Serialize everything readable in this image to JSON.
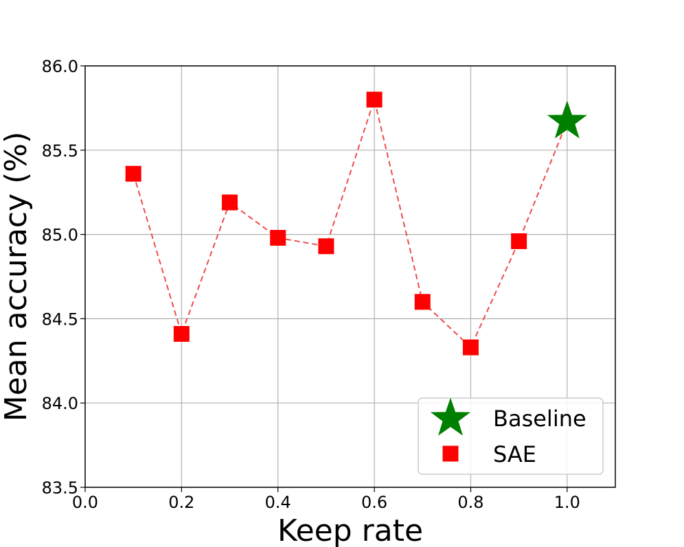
{
  "chart_data": {
    "type": "line",
    "title": "",
    "xlabel": "Keep rate",
    "ylabel": "Mean accuracy (%)",
    "xlim": [
      0.0,
      1.1
    ],
    "ylim": [
      83.5,
      86.0
    ],
    "xticks": [
      "0.0",
      "0.2",
      "0.4",
      "0.6",
      "0.8",
      "1.0"
    ],
    "xtick_values": [
      0.0,
      0.2,
      0.4,
      0.6,
      0.8,
      1.0
    ],
    "yticks": [
      "83.5",
      "84.0",
      "84.5",
      "85.0",
      "85.5",
      "86.0"
    ],
    "ytick_values": [
      83.5,
      84.0,
      84.5,
      85.0,
      85.5,
      86.0
    ],
    "grid": true,
    "legend_position": "bottom-right",
    "line_color": "#f04040",
    "line_style": "dashed",
    "series": [
      {
        "name": "Baseline",
        "marker": "star",
        "color": "#008000",
        "x": [
          1.0
        ],
        "y": [
          85.67
        ]
      },
      {
        "name": "SAE",
        "marker": "square",
        "color": "#ff0000",
        "x": [
          0.1,
          0.2,
          0.3,
          0.4,
          0.5,
          0.6,
          0.7,
          0.8,
          0.9
        ],
        "y": [
          85.36,
          84.41,
          85.19,
          84.98,
          84.93,
          85.8,
          84.6,
          84.33,
          84.96
        ]
      }
    ],
    "connecting_line": {
      "x": [
        0.1,
        0.2,
        0.3,
        0.4,
        0.5,
        0.6,
        0.7,
        0.8,
        0.9,
        1.0
      ],
      "y": [
        85.36,
        84.41,
        85.19,
        84.98,
        84.93,
        85.8,
        84.6,
        84.33,
        84.96,
        85.67
      ]
    }
  }
}
